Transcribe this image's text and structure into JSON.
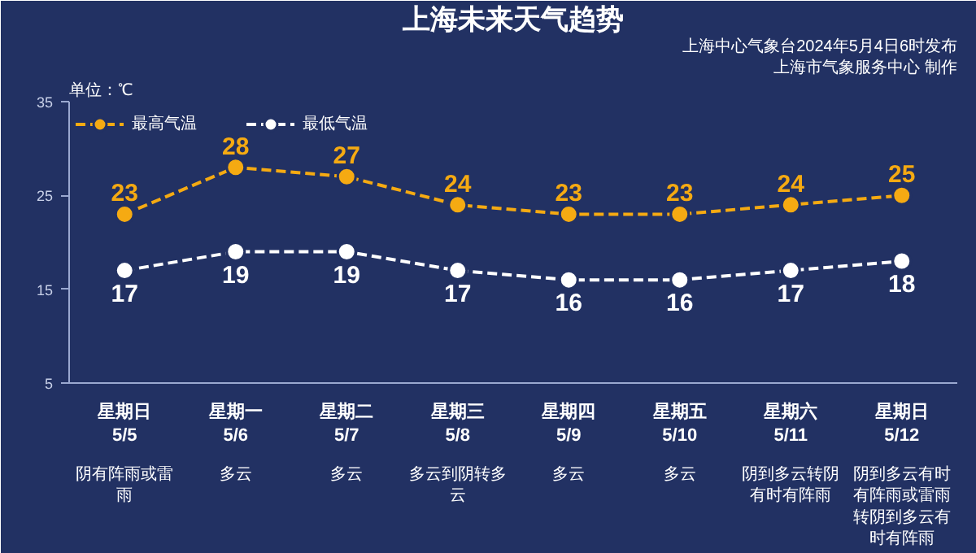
{
  "chart_data": {
    "type": "line",
    "title": "上海未来天气趋势",
    "ylabel": "单位：℃",
    "categories": [
      "星期日\n5/5",
      "星期一\n5/6",
      "星期二\n5/7",
      "星期三\n5/8",
      "星期四\n5/9",
      "星期五\n5/10",
      "星期六\n5/11",
      "星期日\n5/12"
    ],
    "series": [
      {
        "name": "最高气温",
        "color": "#f5aa12",
        "values": [
          23,
          28,
          27,
          24,
          23,
          23,
          24,
          25
        ]
      },
      {
        "name": "最低气温",
        "color": "#ffffff",
        "values": [
          17,
          19,
          19,
          17,
          16,
          16,
          17,
          18
        ]
      }
    ],
    "ylim": [
      5,
      35
    ],
    "yticks": [
      5,
      15,
      25,
      35
    ],
    "grid": false,
    "legend": "top left",
    "marker": "circle",
    "line_style": "dashed",
    "data_labels": true,
    "annotations": [
      "上海中心气象台2024年5月4日6时发布",
      "上海市气象服务中心 制作",
      "阴有阵雨或雷雨",
      "多云",
      "多云",
      "多云到阴转多云",
      "多云",
      "多云",
      "阴到多云转阴有时有阵雨",
      "阴到多云有时有阵雨或雷雨转阴到多云有时有阵雨"
    ]
  }
}
